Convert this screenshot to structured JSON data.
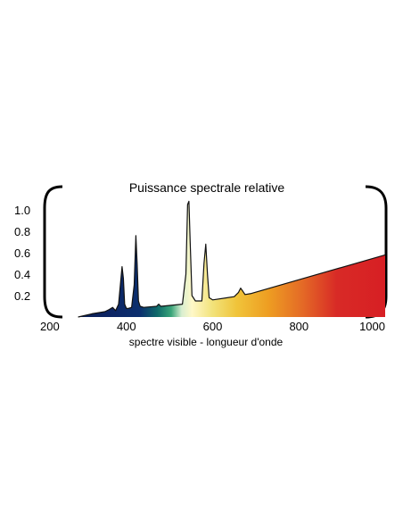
{
  "chart_data": {
    "type": "area",
    "title": "Puissance spectrale relative",
    "xlabel": "spectre visible - longueur d'onde",
    "ylabel": "",
    "xlim": [
      200,
      1000
    ],
    "ylim": [
      0,
      1.1
    ],
    "x_ticks": [
      200,
      400,
      600,
      800,
      1000
    ],
    "y_ticks": [
      0.2,
      0.4,
      0.6,
      0.8,
      1.0
    ],
    "y_tick_labels": [
      "0.2",
      "0.4",
      "0.6",
      "0.8",
      "1.0"
    ],
    "grid": false,
    "legend": "none",
    "fill": "visible-spectrum gradient (blue to red)",
    "series": [
      {
        "x": [
          288,
          320,
          350,
          360,
          368,
          375,
          382,
          386,
          390,
          393,
          396,
          400,
          404,
          412,
          418,
          422,
          425,
          428,
          432,
          440,
          470,
          475,
          480,
          530,
          538,
          542,
          545,
          548,
          552,
          560,
          575,
          580,
          584,
          588,
          592,
          600,
          650,
          660,
          665,
          670,
          675,
          690,
          1000
        ],
        "y": [
          0.0,
          0.03,
          0.05,
          0.07,
          0.09,
          0.06,
          0.12,
          0.3,
          0.47,
          0.36,
          0.12,
          0.08,
          0.08,
          0.09,
          0.3,
          0.76,
          0.5,
          0.15,
          0.1,
          0.09,
          0.1,
          0.12,
          0.1,
          0.12,
          0.4,
          1.05,
          1.08,
          0.7,
          0.2,
          0.15,
          0.15,
          0.5,
          0.68,
          0.4,
          0.18,
          0.16,
          0.19,
          0.23,
          0.27,
          0.24,
          0.21,
          0.22,
          0.58
        ]
      }
    ]
  }
}
